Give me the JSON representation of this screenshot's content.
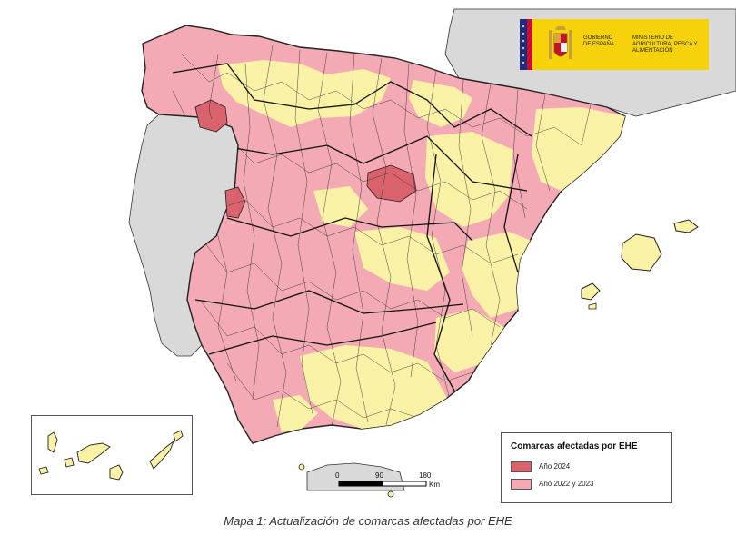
{
  "logo": {
    "gobierno": "GOBIERNO DE ESPAÑA",
    "ministerio": "MINISTERIO DE AGRICULTURA, PESCA Y ALIMENTACIÓN"
  },
  "legend": {
    "title": "Comarcas afectadas por EHE",
    "items": [
      {
        "label": "Año 2024",
        "color": "#d9626c"
      },
      {
        "label": "Año 2022 y 2023",
        "color": "#f3aab4"
      }
    ]
  },
  "colors": {
    "unaffected": "#f9f2a6",
    "affected_2022_2023": "#f3aab4",
    "affected_2024": "#d9626c",
    "foreign_land": "#d9d9d9",
    "sea": "#ffffff",
    "borders": "#222222"
  },
  "scale_bar": {
    "ticks": [
      "0",
      "90",
      "180"
    ],
    "unit": "Km"
  },
  "caption": "Mapa 1: Actualización de comarcas afectadas por EHE"
}
